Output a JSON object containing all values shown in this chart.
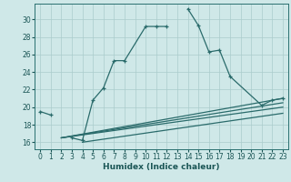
{
  "background_color": "#cfe8e8",
  "grid_color": "#aacccc",
  "line_color": "#2a6b6b",
  "xlabel": "Humidex (Indice chaleur)",
  "xlim": [
    -0.5,
    23.5
  ],
  "ylim": [
    15.2,
    31.8
  ],
  "xticks": [
    0,
    1,
    2,
    3,
    4,
    5,
    6,
    7,
    8,
    9,
    10,
    11,
    12,
    13,
    14,
    15,
    16,
    17,
    18,
    19,
    20,
    21,
    22,
    23
  ],
  "yticks": [
    16,
    18,
    20,
    22,
    24,
    26,
    28,
    30
  ],
  "main_x": [
    0,
    1,
    2,
    3,
    4,
    5,
    6,
    7,
    8,
    10,
    11,
    12,
    13,
    14,
    15,
    16,
    17,
    18,
    21,
    22,
    23
  ],
  "main_y": [
    19.5,
    19.1,
    null,
    16.5,
    16.2,
    20.8,
    22.2,
    25.3,
    25.3,
    29.2,
    29.2,
    29.2,
    null,
    31.2,
    29.3,
    26.3,
    26.5,
    23.5,
    20.2,
    20.8,
    21.0
  ],
  "line1_x": [
    2,
    23
  ],
  "line1_y": [
    16.5,
    21.0
  ],
  "line2_x": [
    2,
    23
  ],
  "line2_y": [
    16.5,
    20.5
  ],
  "line3_x": [
    2,
    23
  ],
  "line3_y": [
    16.5,
    20.0
  ],
  "line4_x": [
    4,
    23
  ],
  "line4_y": [
    16.0,
    19.3
  ]
}
